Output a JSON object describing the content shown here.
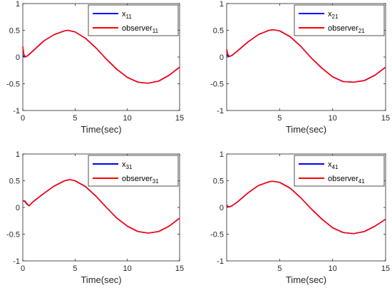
{
  "chart_data": [
    {
      "type": "line",
      "xlabel": "Time(sec)",
      "xlim": [
        0,
        15
      ],
      "ylim": [
        -1,
        1
      ],
      "xticks": [
        "0",
        "5",
        "10",
        "15"
      ],
      "yticks": [
        "1",
        "0.5",
        "0",
        "-0.5",
        "-1"
      ],
      "legend_position": "top-right",
      "grid": false,
      "x": [
        0,
        0.1,
        0.25,
        0.5,
        1,
        2,
        3,
        4,
        4.3,
        5,
        6,
        7,
        8,
        9,
        10,
        11,
        12,
        13,
        14,
        15
      ],
      "series": [
        {
          "name_base": "x",
          "name_sub": "11",
          "color": "#0000ff",
          "values": [
            0.03,
            0.01,
            0.0,
            0.03,
            0.12,
            0.3,
            0.42,
            0.49,
            0.5,
            0.47,
            0.35,
            0.17,
            -0.04,
            -0.23,
            -0.38,
            -0.47,
            -0.49,
            -0.45,
            -0.34,
            -0.19
          ]
        },
        {
          "name_base": "observer",
          "name_sub": "11",
          "color": "#ff0000",
          "values": [
            0.2,
            0.05,
            0.0,
            0.03,
            0.12,
            0.3,
            0.42,
            0.49,
            0.5,
            0.47,
            0.35,
            0.17,
            -0.04,
            -0.23,
            -0.38,
            -0.47,
            -0.49,
            -0.45,
            -0.34,
            -0.19
          ]
        }
      ]
    },
    {
      "type": "line",
      "xlabel": "Time(sec)",
      "xlim": [
        0,
        15
      ],
      "ylim": [
        -1,
        1
      ],
      "xticks": [
        "5",
        "10",
        "15"
      ],
      "yticks": [
        "1",
        "0.5",
        "0",
        "-0.5",
        "-1"
      ],
      "legend_position": "top-right",
      "grid": false,
      "x": [
        0,
        0.1,
        0.25,
        0.5,
        1,
        2,
        3,
        4,
        4.4,
        5,
        6,
        7,
        8,
        9,
        10,
        11,
        12,
        13,
        14,
        15
      ],
      "series": [
        {
          "name_base": "x",
          "name_sub": "21",
          "color": "#0000ff",
          "values": [
            0.05,
            0.02,
            0.01,
            0.03,
            0.11,
            0.28,
            0.42,
            0.5,
            0.51,
            0.49,
            0.38,
            0.2,
            -0.02,
            -0.21,
            -0.37,
            -0.46,
            -0.47,
            -0.44,
            -0.34,
            -0.19
          ]
        },
        {
          "name_base": "observer",
          "name_sub": "21",
          "color": "#ff0000",
          "values": [
            0.15,
            0.06,
            0.01,
            0.03,
            0.11,
            0.28,
            0.42,
            0.5,
            0.51,
            0.49,
            0.38,
            0.2,
            -0.02,
            -0.21,
            -0.37,
            -0.46,
            -0.47,
            -0.44,
            -0.34,
            -0.19
          ]
        }
      ]
    },
    {
      "type": "line",
      "xlabel": "Time(sec)",
      "xlim": [
        0,
        15
      ],
      "ylim": [
        -1,
        1
      ],
      "xticks": [
        "0",
        "5",
        "10",
        "15"
      ],
      "yticks": [
        "1",
        "0.5",
        "0",
        "-0.5",
        "-1"
      ],
      "legend_position": "top-right",
      "grid": false,
      "x": [
        0,
        0.2,
        0.4,
        0.6,
        1,
        2,
        3,
        4,
        4.5,
        5,
        6,
        7,
        8,
        9,
        10,
        11,
        12,
        13,
        14,
        15
      ],
      "series": [
        {
          "name_base": "x",
          "name_sub": "31",
          "color": "#0000ff",
          "values": [
            0.13,
            0.11,
            0.06,
            0.03,
            0.11,
            0.26,
            0.4,
            0.5,
            0.52,
            0.5,
            0.39,
            0.21,
            0.0,
            -0.2,
            -0.35,
            -0.45,
            -0.48,
            -0.45,
            -0.35,
            -0.2
          ]
        },
        {
          "name_base": "observer",
          "name_sub": "31",
          "color": "#ff0000",
          "values": [
            0.13,
            0.12,
            0.07,
            0.03,
            0.11,
            0.26,
            0.4,
            0.5,
            0.52,
            0.5,
            0.39,
            0.21,
            0.0,
            -0.2,
            -0.35,
            -0.45,
            -0.48,
            -0.45,
            -0.35,
            -0.2
          ]
        }
      ]
    },
    {
      "type": "line",
      "xlabel": "Time(sec)",
      "xlim": [
        0,
        15
      ],
      "ylim": [
        -1,
        1
      ],
      "xticks": [
        "5",
        "10",
        "15"
      ],
      "yticks": [
        "1",
        "0.5",
        "0",
        "-0.5",
        "-1"
      ],
      "legend_position": "top-right",
      "grid": false,
      "x": [
        0,
        0.1,
        0.25,
        0.5,
        1,
        2,
        3,
        4,
        4.3,
        5,
        6,
        7,
        8,
        9,
        10,
        11,
        12,
        13,
        14,
        15
      ],
      "series": [
        {
          "name_base": "x",
          "name_sub": "41",
          "color": "#0000ff",
          "values": [
            0.03,
            0.02,
            0.01,
            0.03,
            0.1,
            0.27,
            0.41,
            0.48,
            0.49,
            0.47,
            0.36,
            0.18,
            -0.03,
            -0.22,
            -0.38,
            -0.47,
            -0.49,
            -0.45,
            -0.35,
            -0.22
          ]
        },
        {
          "name_base": "observer",
          "name_sub": "41",
          "color": "#ff0000",
          "values": [
            0.05,
            0.02,
            0.01,
            0.03,
            0.1,
            0.27,
            0.41,
            0.48,
            0.49,
            0.47,
            0.36,
            0.18,
            -0.03,
            -0.22,
            -0.38,
            -0.47,
            -0.49,
            -0.45,
            -0.35,
            -0.22
          ]
        }
      ]
    }
  ]
}
